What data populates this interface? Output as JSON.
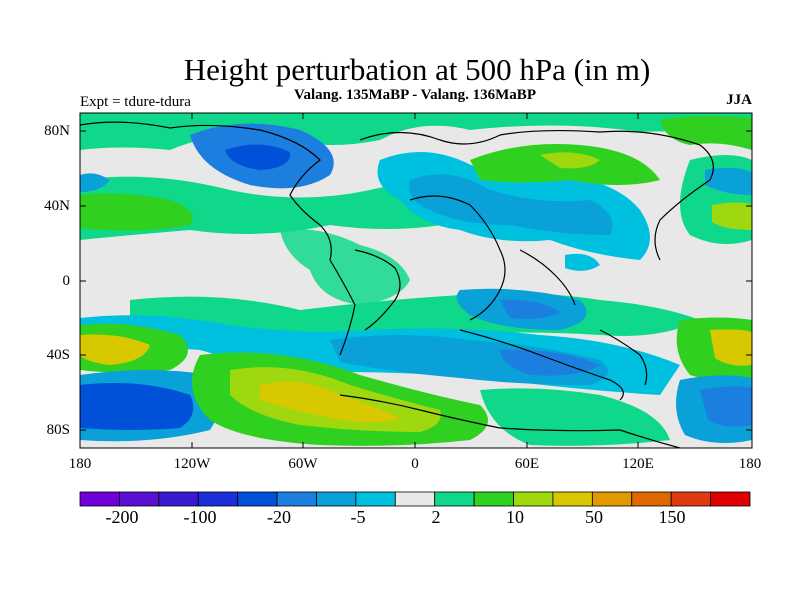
{
  "header": {
    "title": "Height perturbation at 500 hPa (in m)",
    "subtitle": "Valang.  135MaBP - Valang.  136MaBP",
    "left_label": "Expt = tdure-tdura",
    "right_label": "JJA"
  },
  "axes": {
    "lat_labels": [
      "80N",
      "40N",
      "0",
      "40S",
      "80S"
    ],
    "lon_labels": [
      "180",
      "120W",
      "60W",
      "0",
      "60E",
      "120E",
      "180"
    ]
  },
  "colorbar": {
    "colors": [
      "#7000d8",
      "#5a10d0",
      "#3a1ad0",
      "#1c2fd8",
      "#0050d8",
      "#1c7fe0",
      "#0aa0d8",
      "#00c0e0",
      "#e8e8e8",
      "#10d88a",
      "#30d020",
      "#a0d810",
      "#d8c800",
      "#e09a00",
      "#e06800",
      "#e03a10",
      "#e00000"
    ],
    "labels": [
      "-200",
      "-100",
      "-20",
      "-5",
      "2",
      "10",
      "50",
      "150"
    ]
  },
  "map": {
    "background_color": "#e8e8e8",
    "coast_color": "#000000"
  }
}
